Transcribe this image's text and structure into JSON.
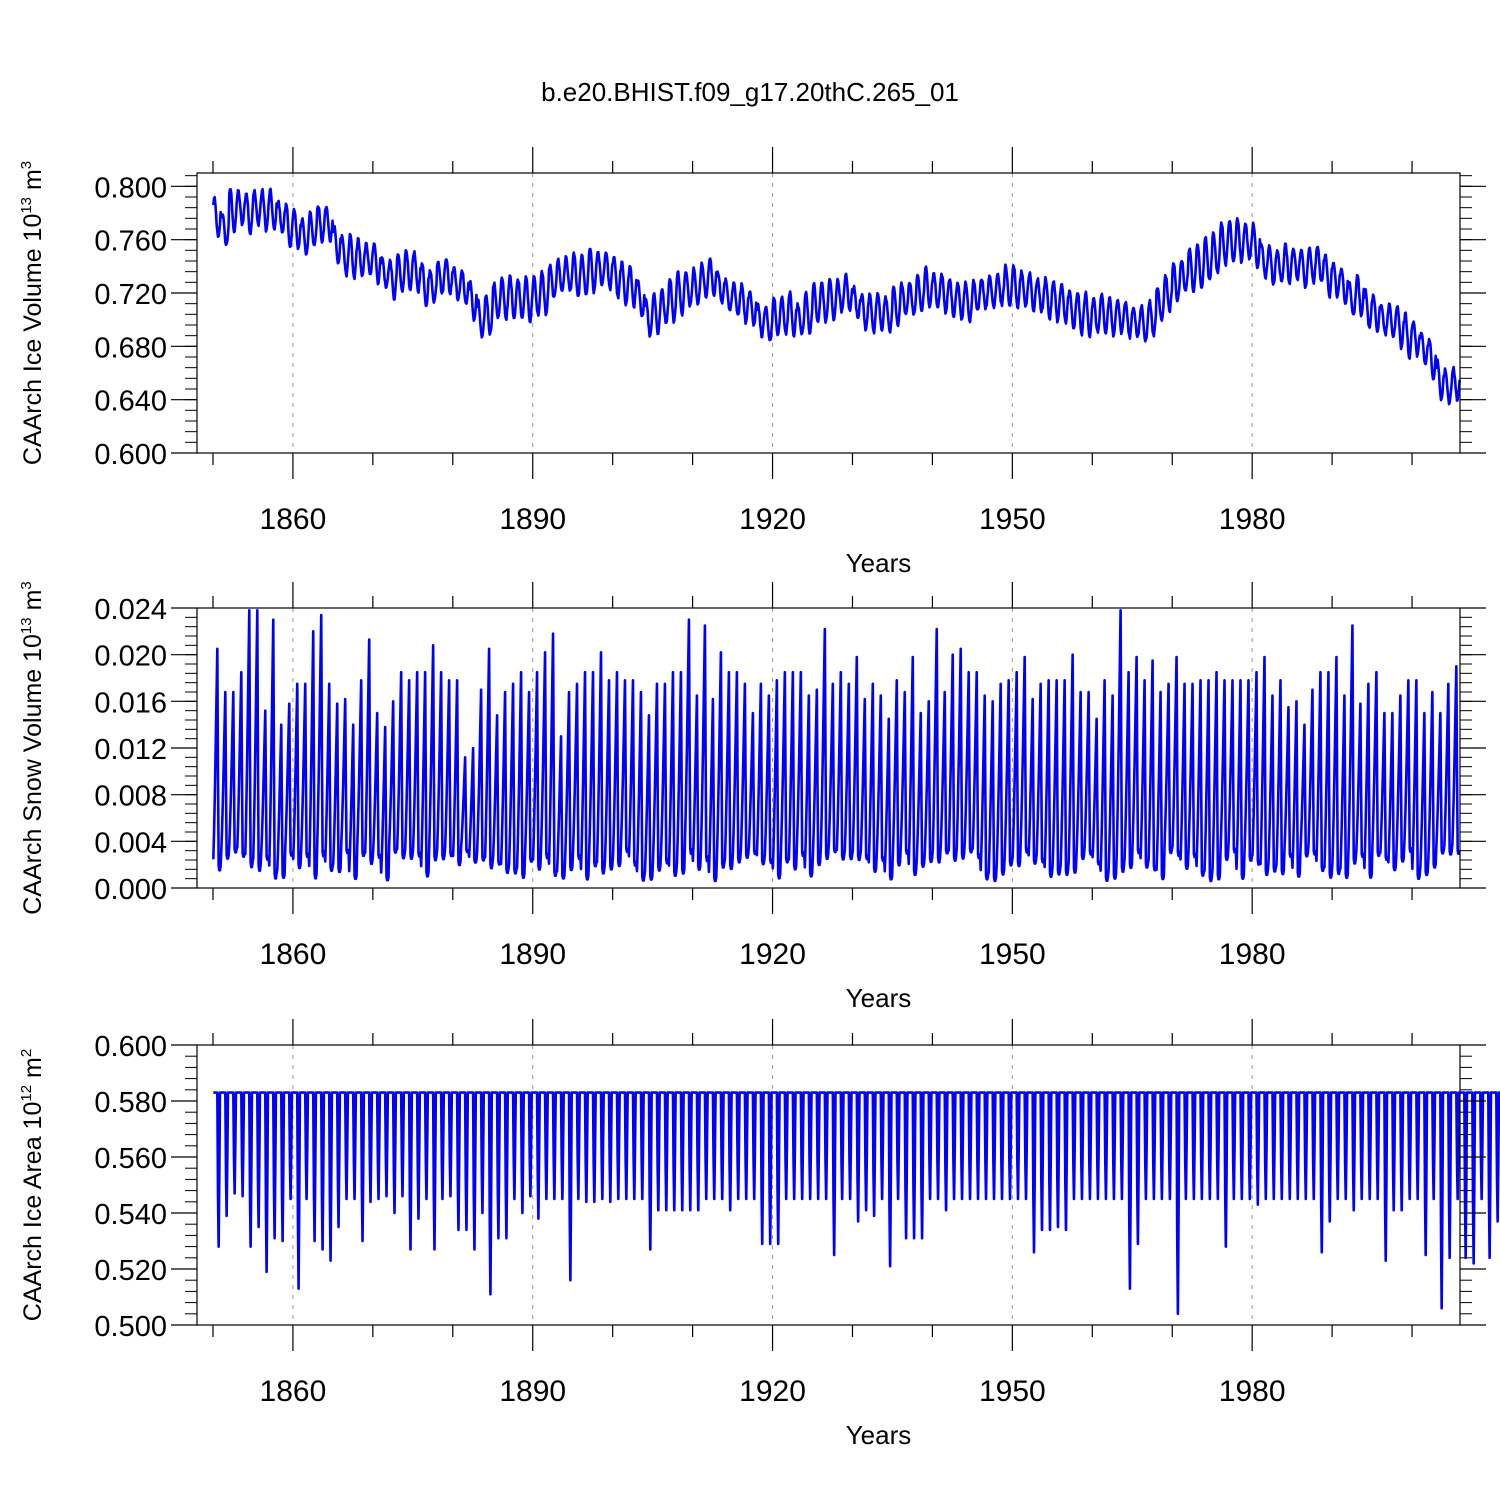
{
  "title": "b.e20.BHIST.f09_g17.20thC.265_01",
  "colors": {
    "series": "#0000ff",
    "axis": "#000000",
    "grid": "#999999",
    "background": "#ffffff"
  },
  "chart_data": [
    {
      "type": "line",
      "title": "b.e20.BHIST.f09_g17.20thC.265_01",
      "xlabel": "Years",
      "ylabel": {
        "text": "CAArch Ice Volume 10",
        "exp": "13",
        "unit": "m",
        "unit_exp": "3"
      },
      "xlim": [
        1848.0,
        2006.0
      ],
      "ylim": [
        0.6,
        0.81
      ],
      "xticks": [
        1860,
        1890,
        1920,
        1950,
        1980
      ],
      "xtick_labels": [
        "1860",
        "1890",
        "1920",
        "1950",
        "1980"
      ],
      "yticks": [
        0.6,
        0.64,
        0.68,
        0.72,
        0.76,
        0.8
      ],
      "ytick_labels": [
        "0.600",
        "0.640",
        "0.680",
        "0.720",
        "0.760",
        "0.800"
      ],
      "grid": "vertical dashed at major x ticks",
      "series": [
        {
          "name": "CAArch Ice Volume",
          "description": "monthly values 1850-2005; annual cycle with amplitude ~0.03 around the annual mean listed below",
          "start_year": 1850,
          "annual_mean": [
            0.776,
            0.768,
            0.782,
            0.784,
            0.78,
            0.784,
            0.782,
            0.782,
            0.777,
            0.77,
            0.768,
            0.762,
            0.768,
            0.772,
            0.772,
            0.756,
            0.748,
            0.747,
            0.746,
            0.745,
            0.743,
            0.735,
            0.73,
            0.735,
            0.737,
            0.736,
            0.726,
            0.725,
            0.732,
            0.733,
            0.727,
            0.724,
            0.714,
            0.7,
            0.704,
            0.714,
            0.716,
            0.717,
            0.716,
            0.715,
            0.718,
            0.72,
            0.728,
            0.733,
            0.734,
            0.733,
            0.733,
            0.737,
            0.738,
            0.737,
            0.732,
            0.727,
            0.725,
            0.715,
            0.702,
            0.705,
            0.71,
            0.715,
            0.72,
            0.723,
            0.725,
            0.73,
            0.732,
            0.724,
            0.718,
            0.715,
            0.712,
            0.709,
            0.7,
            0.696,
            0.702,
            0.703,
            0.704,
            0.7,
            0.705,
            0.712,
            0.713,
            0.715,
            0.718,
            0.72,
            0.713,
            0.706,
            0.705,
            0.706,
            0.704,
            0.71,
            0.715,
            0.716,
            0.72,
            0.724,
            0.722,
            0.72,
            0.716,
            0.714,
            0.713,
            0.718,
            0.72,
            0.721,
            0.723,
            0.725,
            0.724,
            0.723,
            0.721,
            0.718,
            0.716,
            0.714,
            0.712,
            0.707,
            0.705,
            0.704,
            0.703,
            0.704,
            0.702,
            0.703,
            0.7,
            0.698,
            0.697,
            0.701,
            0.712,
            0.72,
            0.728,
            0.733,
            0.737,
            0.74,
            0.745,
            0.75,
            0.757,
            0.759,
            0.76,
            0.758,
            0.755,
            0.744,
            0.741,
            0.74,
            0.742,
            0.742,
            0.739,
            0.741,
            0.741,
            0.733,
            0.73,
            0.725,
            0.715,
            0.718,
            0.708,
            0.705,
            0.7,
            0.699,
            0.695,
            0.688,
            0.686,
            0.678,
            0.67,
            0.655,
            0.65,
            0.652
          ]
        }
      ]
    },
    {
      "type": "line",
      "xlabel": "Years",
      "ylabel": {
        "text": "CAArch Snow Volume 10",
        "exp": "13",
        "unit": "m",
        "unit_exp": "3"
      },
      "xlim": [
        1848.0,
        2006.0
      ],
      "ylim": [
        0.0,
        0.024
      ],
      "xticks": [
        1860,
        1890,
        1920,
        1950,
        1980
      ],
      "xtick_labels": [
        "1860",
        "1890",
        "1920",
        "1950",
        "1980"
      ],
      "yticks": [
        0.0,
        0.004,
        0.008,
        0.012,
        0.016,
        0.02,
        0.024
      ],
      "ytick_labels": [
        "0.000",
        "0.004",
        "0.008",
        "0.012",
        "0.016",
        "0.020",
        "0.024"
      ],
      "grid": "vertical dashed at major x ticks",
      "series": [
        {
          "name": "CAArch Snow Volume",
          "description": "monthly values 1850-2005; yearly sawtooth from a minimum near 0.0005-0.003 up to the annual peak listed below",
          "start_year": 1850,
          "annual_peak": [
            0.0205,
            0.0168,
            0.0168,
            0.0185,
            0.0238,
            0.0238,
            0.0152,
            0.023,
            0.014,
            0.0158,
            0.0175,
            0.0175,
            0.022,
            0.0234,
            0.0175,
            0.0158,
            0.0162,
            0.014,
            0.0178,
            0.0213,
            0.015,
            0.0138,
            0.016,
            0.0185,
            0.0178,
            0.0185,
            0.0185,
            0.0208,
            0.0185,
            0.0178,
            0.0178,
            0.0112,
            0.012,
            0.017,
            0.0205,
            0.0148,
            0.0168,
            0.0175,
            0.0185,
            0.0168,
            0.0185,
            0.0202,
            0.0218,
            0.013,
            0.0168,
            0.0175,
            0.0185,
            0.0185,
            0.0202,
            0.0178,
            0.0185,
            0.0178,
            0.0178,
            0.0168,
            0.0148,
            0.0175,
            0.0175,
            0.0185,
            0.0185,
            0.023,
            0.0165,
            0.0225,
            0.0162,
            0.0202,
            0.0185,
            0.0185,
            0.0175,
            0.015,
            0.0175,
            0.0165,
            0.0178,
            0.0185,
            0.0185,
            0.0185,
            0.0165,
            0.017,
            0.0222,
            0.0175,
            0.0185,
            0.0175,
            0.0198,
            0.0162,
            0.0175,
            0.0165,
            0.0145,
            0.0178,
            0.0168,
            0.0198,
            0.015,
            0.016,
            0.0222,
            0.0168,
            0.02,
            0.0205,
            0.0185,
            0.0185,
            0.0165,
            0.016,
            0.0175,
            0.0178,
            0.0185,
            0.0198,
            0.0162,
            0.0175,
            0.0178,
            0.0178,
            0.0178,
            0.02,
            0.0168,
            0.0168,
            0.0145,
            0.0178,
            0.0165,
            0.0238,
            0.0185,
            0.0198,
            0.0178,
            0.0195,
            0.0168,
            0.0175,
            0.0198,
            0.0175,
            0.0175,
            0.0178,
            0.0178,
            0.0185,
            0.0178,
            0.0178,
            0.0178,
            0.0178,
            0.0185,
            0.0198,
            0.0165,
            0.0178,
            0.0155,
            0.016,
            0.014,
            0.017,
            0.0185,
            0.0185,
            0.0198,
            0.0165,
            0.0225,
            0.0158,
            0.0175,
            0.0185,
            0.015,
            0.015,
            0.0165,
            0.0178,
            0.0178,
            0.015,
            0.0168,
            0.015,
            0.0175,
            0.019
          ]
        }
      ]
    },
    {
      "type": "line",
      "xlabel": "Years",
      "ylabel": {
        "text": "CAArch Ice Area 10",
        "exp": "12",
        "unit": "m",
        "unit_exp": "2"
      },
      "xlim": [
        1848.0,
        2006.0
      ],
      "ylim": [
        0.5,
        0.6
      ],
      "xticks": [
        1860,
        1890,
        1920,
        1950,
        1980
      ],
      "xtick_labels": [
        "1860",
        "1890",
        "1920",
        "1950",
        "1980"
      ],
      "yticks": [
        0.5,
        0.52,
        0.54,
        0.56,
        0.58,
        0.6
      ],
      "ytick_labels": [
        "0.500",
        "0.520",
        "0.540",
        "0.560",
        "0.580",
        "0.600"
      ],
      "grid": "vertical dashed at major x ticks",
      "series": [
        {
          "name": "CAArch Ice Area",
          "description": "monthly values 1850-2005; saturates at 0.583 for most of the year and dips once per year to the annual minimum listed below",
          "plateau": 0.583,
          "start_year": 1850,
          "annual_min": [
            0.528,
            0.539,
            0.547,
            0.546,
            0.528,
            0.535,
            0.519,
            0.531,
            0.53,
            0.545,
            0.513,
            0.545,
            0.53,
            0.527,
            0.523,
            0.535,
            0.545,
            0.545,
            0.53,
            0.544,
            0.545,
            0.546,
            0.54,
            0.546,
            0.527,
            0.538,
            0.545,
            0.527,
            0.545,
            0.546,
            0.534,
            0.534,
            0.527,
            0.54,
            0.511,
            0.531,
            0.531,
            0.545,
            0.54,
            0.546,
            0.538,
            0.545,
            0.545,
            0.545,
            0.516,
            0.545,
            0.544,
            0.544,
            0.545,
            0.544,
            0.545,
            0.545,
            0.545,
            0.545,
            0.527,
            0.541,
            0.541,
            0.541,
            0.541,
            0.541,
            0.541,
            0.545,
            0.545,
            0.545,
            0.541,
            0.545,
            0.545,
            0.545,
            0.529,
            0.529,
            0.529,
            0.545,
            0.545,
            0.545,
            0.545,
            0.545,
            0.545,
            0.525,
            0.545,
            0.545,
            0.537,
            0.541,
            0.539,
            0.545,
            0.521,
            0.545,
            0.531,
            0.531,
            0.531,
            0.545,
            0.545,
            0.541,
            0.545,
            0.545,
            0.545,
            0.545,
            0.545,
            0.545,
            0.545,
            0.545,
            0.545,
            0.545,
            0.526,
            0.534,
            0.534,
            0.535,
            0.534,
            0.545,
            0.545,
            0.545,
            0.545,
            0.545,
            0.545,
            0.545,
            0.513,
            0.529,
            0.545,
            0.545,
            0.545,
            0.545,
            0.504,
            0.545,
            0.545,
            0.545,
            0.545,
            0.545,
            0.528,
            0.545,
            0.545,
            0.545,
            0.543,
            0.545,
            0.545,
            0.545,
            0.545,
            0.545,
            0.545,
            0.545,
            0.526,
            0.537,
            0.545,
            0.545,
            0.541,
            0.545,
            0.545,
            0.545,
            0.523,
            0.541,
            0.541,
            0.545,
            0.545,
            0.525,
            0.545,
            0.506,
            0.524,
            0.545,
            0.524,
            0.522,
            0.545,
            0.524,
            0.537,
            0.531
          ]
        }
      ]
    }
  ]
}
